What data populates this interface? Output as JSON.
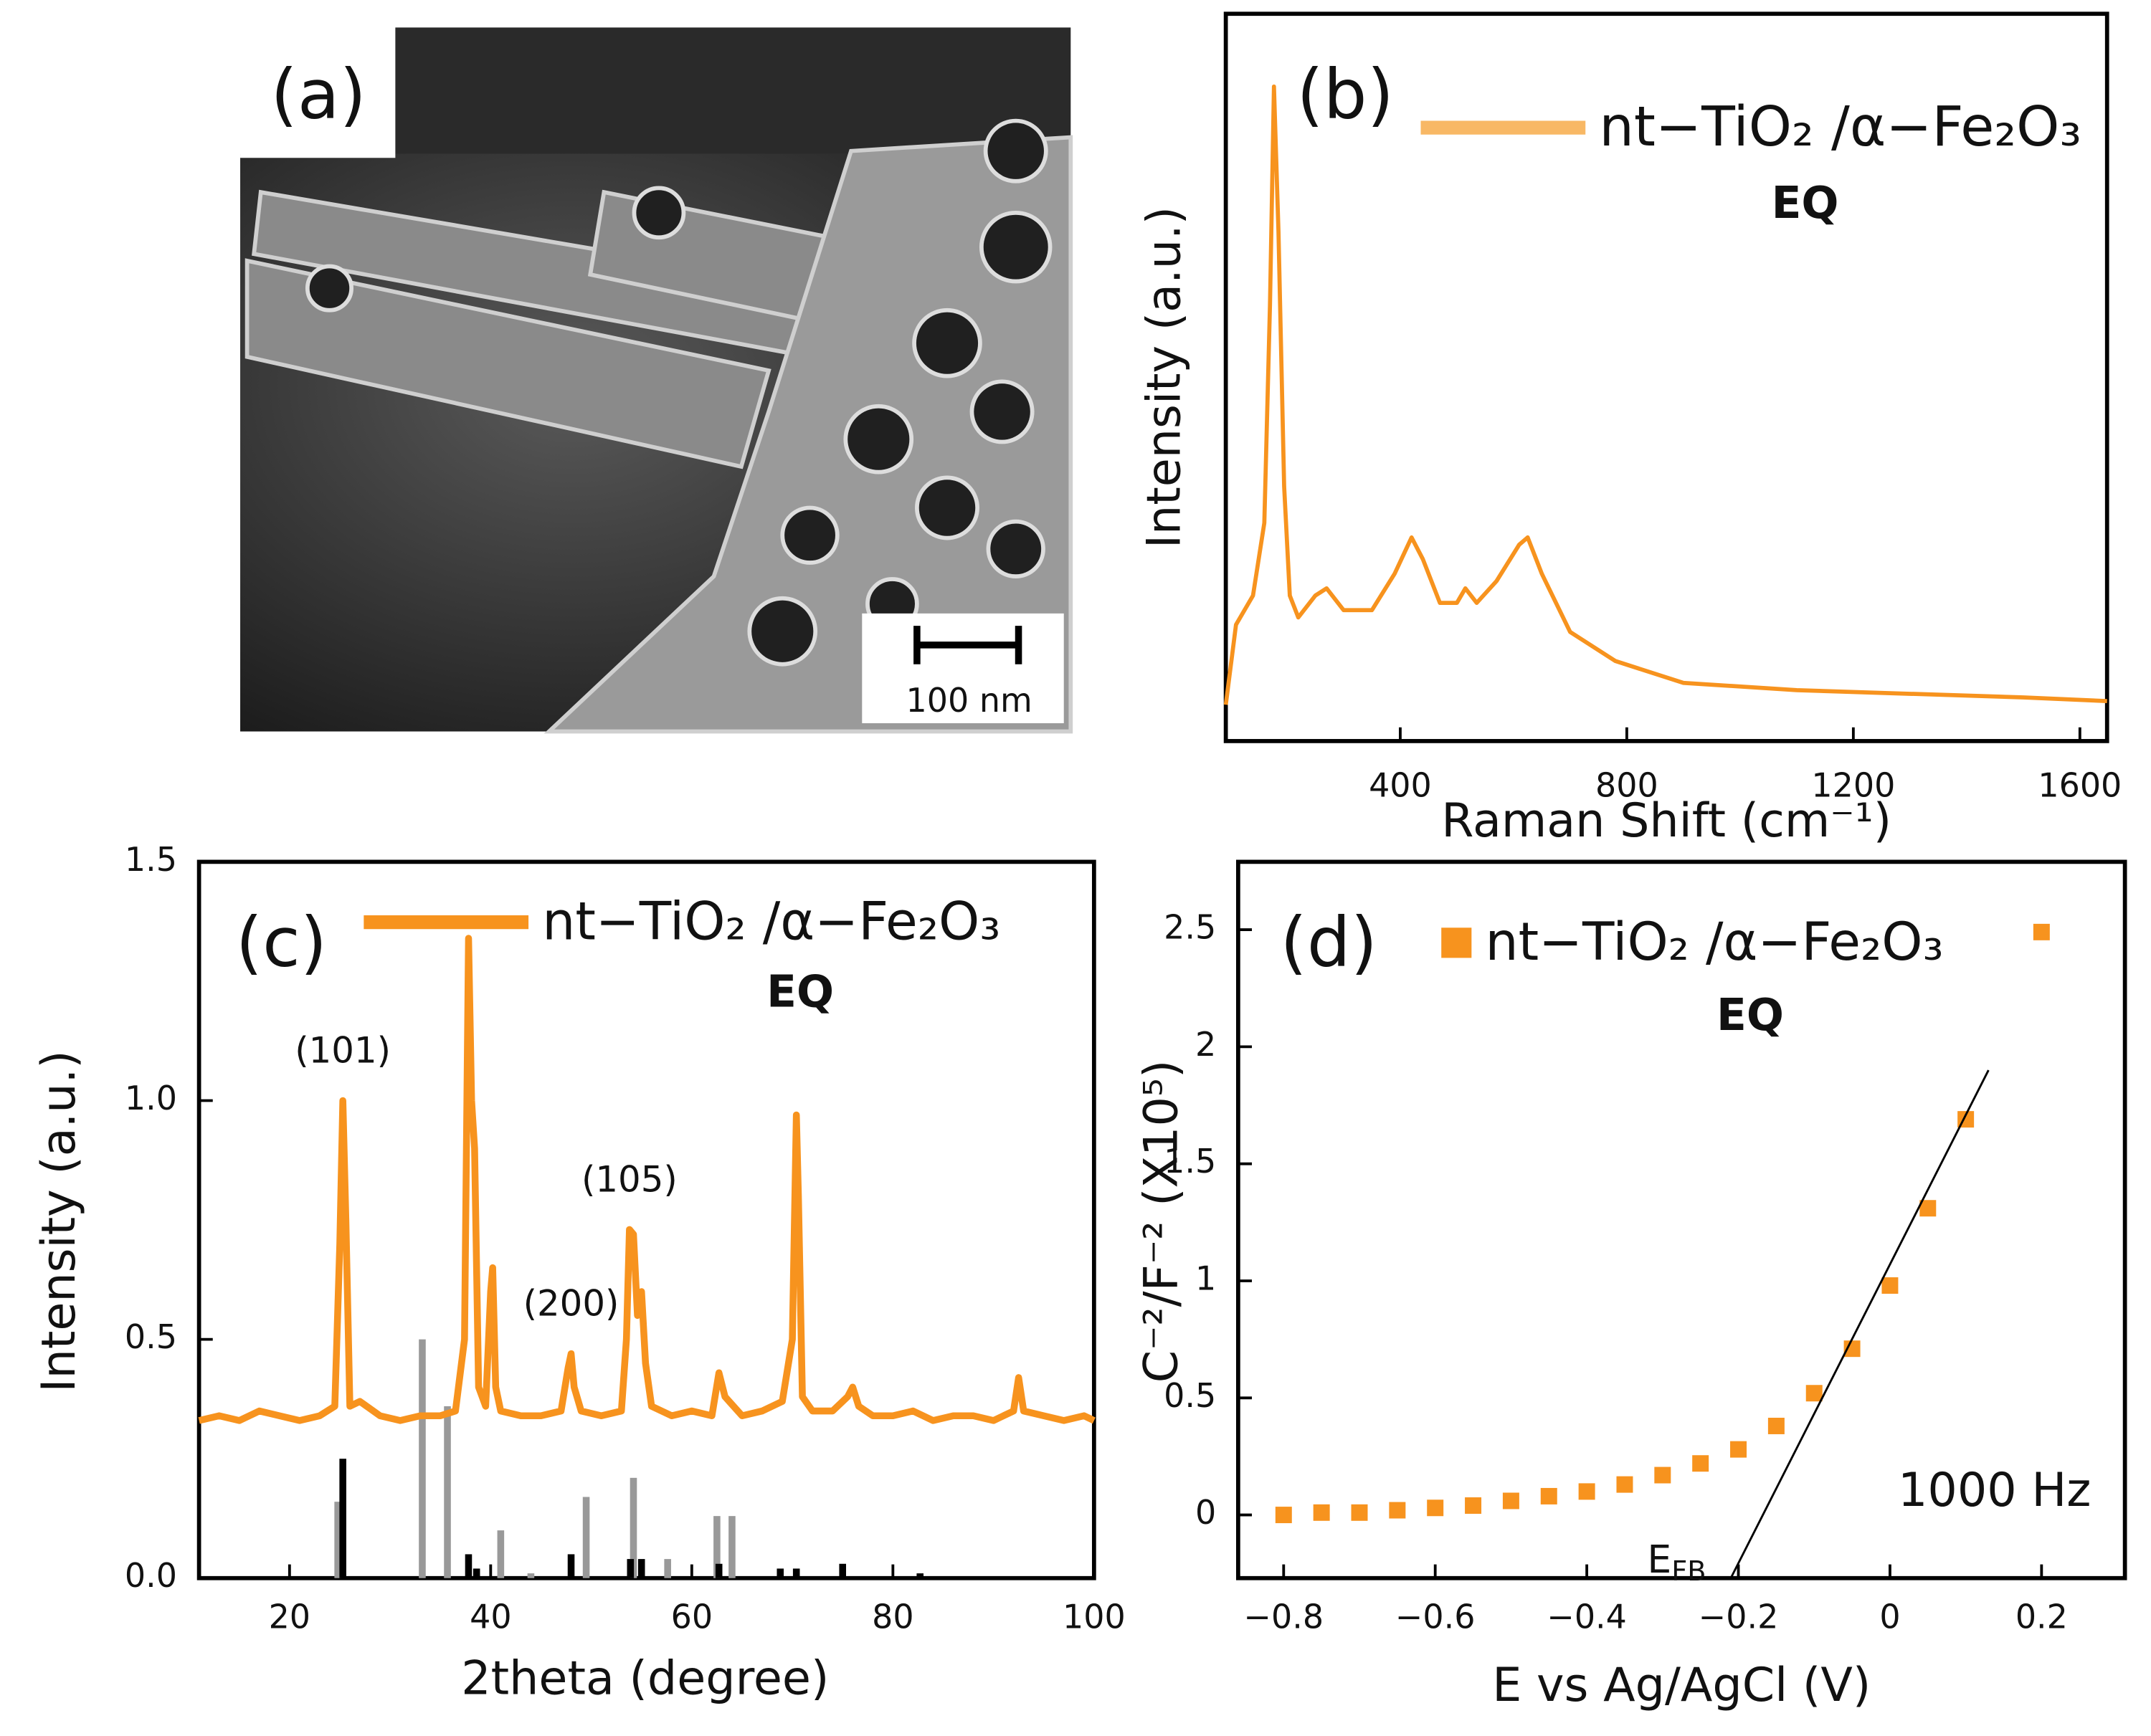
{
  "image_panel": {
    "label": "(a)",
    "scale_bar": "100 nm"
  },
  "chart_data": [
    {
      "type": "line",
      "panel": "(b)",
      "x_label": "Raman Shift (cm⁻¹)",
      "y_label": "Intensity (a.u.)",
      "note": "EQ",
      "xlim": [
        92,
        1648
      ],
      "ylim": [
        0,
        1
      ],
      "xticks": [
        400,
        800,
        1200,
        1600
      ],
      "x": [
        92,
        110,
        140,
        160,
        170,
        177,
        185,
        195,
        205,
        220,
        250,
        270,
        300,
        350,
        390,
        420,
        440,
        470,
        500,
        515,
        535,
        570,
        610,
        625,
        650,
        700,
        780,
        900,
        1100,
        1300,
        1500,
        1648
      ],
      "series": [
        {
          "name": "nt−TiO₂ /α−Fe₂O₃",
          "color": "#f7931e",
          "values": [
            0.05,
            0.16,
            0.2,
            0.3,
            0.6,
            0.9,
            0.7,
            0.35,
            0.2,
            0.17,
            0.2,
            0.21,
            0.18,
            0.18,
            0.23,
            0.28,
            0.25,
            0.19,
            0.19,
            0.21,
            0.19,
            0.22,
            0.27,
            0.28,
            0.23,
            0.15,
            0.11,
            0.08,
            0.07,
            0.065,
            0.06,
            0.055
          ]
        }
      ]
    },
    {
      "type": "line",
      "panel": "(c)",
      "x_label": "2theta (degree)",
      "y_label": "Intensity (a.u.)",
      "note": "EQ",
      "xlim": [
        11,
        100
      ],
      "ylim": [
        0,
        1.5
      ],
      "xticks": [
        20,
        40,
        60,
        80,
        100
      ],
      "yticks": [
        {
          "value": 0,
          "label": "0.0"
        },
        0.5,
        {
          "value": 1,
          "label": "1.0"
        },
        1.5
      ],
      "annotations": [
        {
          "text": "(101)",
          "x": 25.3,
          "y": 1.1
        },
        {
          "text": "(200)",
          "x": 48,
          "y": 0.57
        },
        {
          "text": "(105)",
          "x": 53.8,
          "y": 0.83
        }
      ],
      "x": [
        11,
        13,
        15,
        17,
        19,
        21,
        23,
        24.5,
        25.0,
        25.3,
        25.6,
        26,
        27,
        29,
        31,
        33,
        35,
        36.5,
        37.4,
        37.8,
        38.1,
        38.4,
        38.8,
        39.5,
        40.0,
        40.2,
        40.5,
        41,
        43,
        45,
        47,
        47.7,
        48.0,
        48.3,
        49,
        51,
        53,
        53.5,
        53.8,
        54.2,
        54.6,
        55.0,
        55.4,
        56,
        58,
        60,
        62,
        62.7,
        63.3,
        65,
        67,
        69,
        70.0,
        70.4,
        70.6,
        71,
        72,
        74,
        75.5,
        76,
        76.6,
        78,
        80,
        82,
        84,
        86,
        88,
        90,
        92,
        92.5,
        93,
        95,
        97,
        99,
        100
      ],
      "series": [
        {
          "name": "nt−TiO₂ /α−Fe₂O₃",
          "color": "#f7931e",
          "values": [
            0.33,
            0.34,
            0.33,
            0.35,
            0.34,
            0.33,
            0.34,
            0.36,
            0.7,
            1.0,
            0.75,
            0.36,
            0.37,
            0.34,
            0.33,
            0.34,
            0.34,
            0.35,
            0.5,
            1.34,
            1.0,
            0.9,
            0.4,
            0.36,
            0.6,
            0.65,
            0.4,
            0.35,
            0.34,
            0.34,
            0.35,
            0.44,
            0.47,
            0.4,
            0.35,
            0.34,
            0.35,
            0.5,
            0.73,
            0.72,
            0.55,
            0.6,
            0.45,
            0.36,
            0.34,
            0.35,
            0.34,
            0.43,
            0.38,
            0.34,
            0.35,
            0.37,
            0.5,
            0.97,
            0.8,
            0.38,
            0.35,
            0.35,
            0.38,
            0.4,
            0.36,
            0.34,
            0.34,
            0.35,
            0.33,
            0.34,
            0.34,
            0.33,
            0.35,
            0.42,
            0.35,
            0.34,
            0.33,
            0.34,
            0.33
          ]
        }
      ],
      "sticks": [
        {
          "color": "#999999",
          "x": [
            24.8,
            33.2,
            35.7,
            41,
            44,
            49.5,
            54.2,
            57.6,
            62.5,
            64
          ],
          "values": [
            0.16,
            0.5,
            0.36,
            0.1,
            0.01,
            0.17,
            0.21,
            0.04,
            0.13,
            0.13
          ]
        },
        {
          "color": "#000000",
          "x": [
            25.3,
            37.8,
            38.6,
            48,
            53.9,
            55,
            62.7,
            68.8,
            70.4,
            75,
            82.7
          ],
          "values": [
            0.25,
            0.05,
            0.02,
            0.05,
            0.04,
            0.04,
            0.03,
            0.02,
            0.02,
            0.03,
            0.01
          ]
        }
      ]
    },
    {
      "type": "scatter",
      "panel": "(d)",
      "x_label": "E vs Ag/AgCl (V)",
      "y_label": "C⁻²/F⁻² (X10⁵)",
      "note": "EQ",
      "frequency": "1000 Hz",
      "efb": {
        "main": "E",
        "sub": "FB"
      },
      "xlim": [
        -0.86,
        0.31
      ],
      "ylim": [
        -0.27,
        2.79
      ],
      "xticks": [
        {
          "value": -0.8,
          "label": "−0.8"
        },
        {
          "value": -0.6,
          "label": "−0.6"
        },
        {
          "value": -0.4,
          "label": "−0.4"
        },
        {
          "value": -0.2,
          "label": "−0.2"
        },
        0,
        0.2
      ],
      "yticks": [
        0,
        0.5,
        1,
        1.5,
        2,
        2.5
      ],
      "x": [
        -0.8,
        -0.75,
        -0.7,
        -0.65,
        -0.6,
        -0.55,
        -0.5,
        -0.45,
        -0.4,
        -0.35,
        -0.3,
        -0.25,
        -0.2,
        -0.15,
        -0.1,
        -0.05,
        0,
        0.05,
        0.1,
        0.2
      ],
      "series": [
        {
          "name": "nt−TiO₂ /α−Fe₂O₃",
          "color": "#f7931e",
          "values": [
            0,
            0.01,
            0.01,
            0.02,
            0.03,
            0.04,
            0.06,
            0.08,
            0.1,
            0.13,
            0.17,
            0.22,
            0.28,
            0.38,
            0.52,
            0.71,
            0.98,
            1.31,
            1.69,
            2.49
          ]
        }
      ],
      "fit_line": {
        "x": [
          -0.21,
          0.13
        ],
        "values": [
          -0.27,
          1.9
        ]
      }
    }
  ]
}
